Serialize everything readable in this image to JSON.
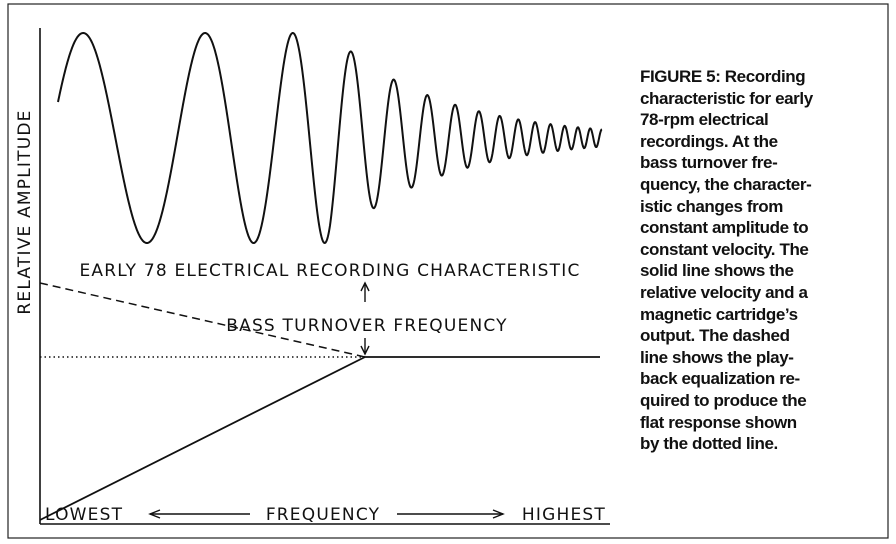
{
  "figure": {
    "y_axis_label": "RELATIVE AMPLITUDE",
    "chart_title": "EARLY 78 ELECTRICAL RECORDING CHARACTERISTIC",
    "annotation": "BASS TURNOVER FREQUENCY",
    "x_axis": {
      "left": "LOWEST",
      "center": "FREQUENCY",
      "right": "HIGHEST"
    },
    "caption_lines": [
      "FIGURE 5: Recording",
      "characteristic for early",
      "78-rpm electrical",
      "recordings. At the",
      "bass turnover fre-",
      "quency, the character-",
      "istic changes from",
      "constant amplitude to",
      "constant velocity. The",
      "solid line shows the",
      "relative velocity and a",
      "magnetic cartridge’s",
      "output. The dashed",
      "line shows the play-",
      "back equalization re-",
      "quired to produce the",
      "flat response shown",
      "by the dotted line."
    ]
  }
}
